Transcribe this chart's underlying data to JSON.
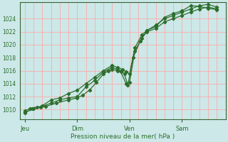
{
  "title": "",
  "xlabel": "Pression niveau de la mer( hPa )",
  "ylabel": "",
  "bg_color": "#cce8e8",
  "grid_color_h": "#ffaaaa",
  "grid_color_v": "#ffaaaa",
  "line_color": "#2d6e2d",
  "tick_label_color": "#2d6e2d",
  "axis_label_color": "#2d6e2d",
  "spine_color": "#336633",
  "ylim": [
    1008.5,
    1026.5
  ],
  "yticks": [
    1010,
    1012,
    1014,
    1016,
    1018,
    1020,
    1022,
    1024
  ],
  "xtick_labels": [
    "Jeu",
    "Dim",
    "Ven",
    "Sam"
  ],
  "xtick_positions": [
    0,
    3,
    6,
    9
  ],
  "xlim": [
    -0.3,
    11.5
  ],
  "x_total": 11.5,
  "series": [
    [
      0.0,
      1009.8,
      0.3,
      1010.2,
      0.7,
      1010.4,
      1.2,
      1010.5,
      1.8,
      1011.0,
      2.5,
      1011.5,
      3.0,
      1011.8,
      3.3,
      1012.2,
      3.7,
      1013.0,
      4.1,
      1014.2,
      4.5,
      1015.5,
      4.8,
      1016.0,
      5.0,
      1016.2,
      5.3,
      1016.0,
      5.5,
      1015.8,
      5.8,
      1014.0,
      6.0,
      1014.2,
      6.3,
      1019.0,
      6.7,
      1021.0,
      7.0,
      1022.0,
      7.5,
      1022.5,
      8.0,
      1023.5,
      8.5,
      1024.0,
      9.0,
      1024.5,
      9.5,
      1025.0,
      10.0,
      1025.5,
      10.5,
      1025.8,
      11.0,
      1025.5
    ],
    [
      0.0,
      1009.5,
      0.4,
      1010.1,
      0.9,
      1010.4,
      1.5,
      1011.0,
      2.0,
      1011.5,
      2.5,
      1011.8,
      3.0,
      1012.0,
      3.5,
      1013.5,
      4.0,
      1014.5,
      4.5,
      1015.8,
      5.0,
      1016.5,
      5.3,
      1016.2,
      5.5,
      1016.0,
      5.7,
      1015.5,
      5.9,
      1013.8,
      6.2,
      1018.0,
      6.6,
      1020.5,
      7.0,
      1022.2,
      7.5,
      1023.0,
      8.0,
      1024.0,
      8.5,
      1024.5,
      9.0,
      1025.0,
      9.5,
      1025.5,
      10.0,
      1026.0,
      10.5,
      1026.2,
      11.0,
      1025.8
    ],
    [
      0.0,
      1009.6,
      0.5,
      1010.1,
      1.0,
      1010.6,
      1.5,
      1011.5,
      2.0,
      1011.8,
      2.5,
      1012.5,
      3.0,
      1013.0,
      3.5,
      1014.0,
      4.0,
      1015.0,
      4.5,
      1016.0,
      5.0,
      1016.8,
      5.3,
      1016.5,
      5.6,
      1016.2,
      5.8,
      1015.8,
      6.0,
      1015.5,
      6.3,
      1019.5,
      6.7,
      1021.5,
      7.0,
      1022.2,
      7.5,
      1022.8,
      8.0,
      1024.2,
      8.5,
      1024.8,
      9.0,
      1025.2,
      9.5,
      1026.0,
      10.0,
      1025.9,
      10.5,
      1025.6,
      11.0,
      1025.4
    ]
  ]
}
